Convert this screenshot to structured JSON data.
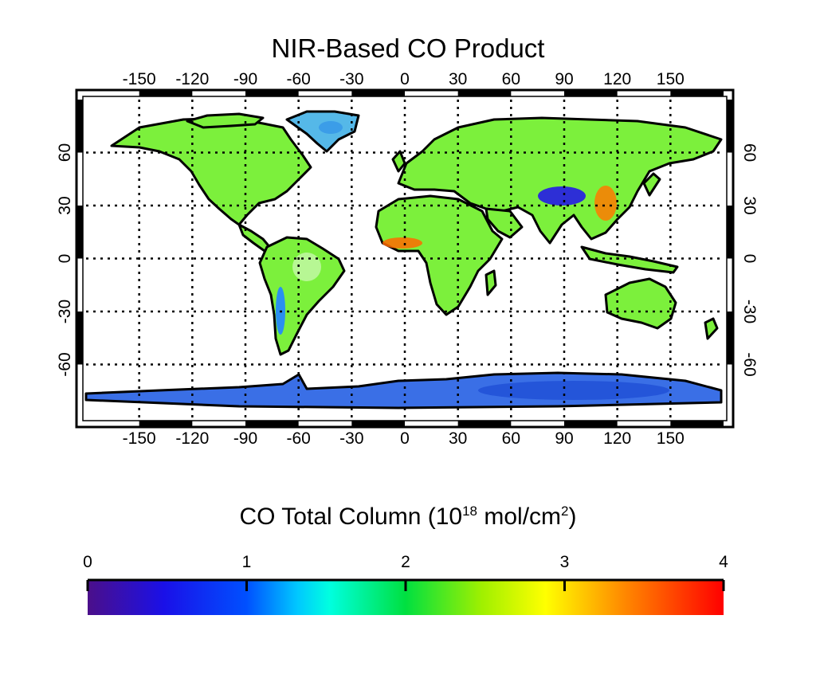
{
  "title": "NIR-Based CO Product",
  "map": {
    "lon_ticks": [
      "-150",
      "-120",
      "-90",
      "-60",
      "-30",
      "0",
      "30",
      "60",
      "90",
      "120",
      "150"
    ],
    "lat_ticks": [
      "60",
      "30",
      "0",
      "-30",
      "-60"
    ],
    "lon_range": [
      -180,
      180
    ],
    "lat_range": [
      -90,
      90
    ],
    "grid": true,
    "grid_style": "dotted"
  },
  "colorbar": {
    "title_prefix": "CO Total Column (10",
    "title_exp1": "18",
    "title_mid": " mol/cm",
    "title_exp2": "2",
    "title_suffix": ")",
    "ticks": [
      "0",
      "1",
      "2",
      "3",
      "4"
    ],
    "range": [
      0,
      4
    ],
    "colors": [
      "#4b0f8a",
      "#0000ff",
      "#00ffff",
      "#00e000",
      "#ffff00",
      "#ff9900",
      "#ff0000"
    ]
  },
  "colors": {
    "land": "#7cf03c",
    "low": "#3b5be0",
    "antarctica": "#2f6fe8",
    "high": "#ff7a00"
  }
}
